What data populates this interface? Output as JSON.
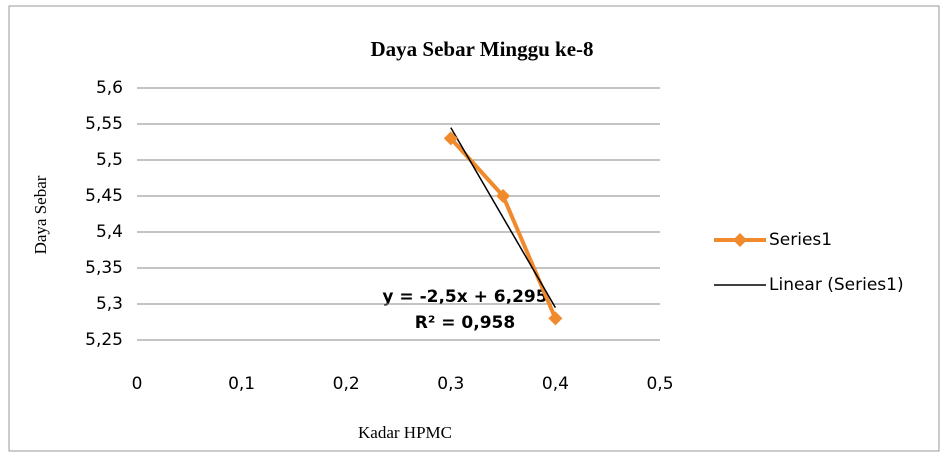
{
  "chart_data": {
    "type": "scatter-line",
    "title": "Daya Sebar Minggu ke-8",
    "x_label": "Kadar HPMC",
    "y_label": "Daya Sebar",
    "series": [
      {
        "name": "Series1",
        "color": "#f08a2c",
        "marker": "diamond",
        "x": [
          0.3,
          0.35,
          0.4
        ],
        "values": [
          5.53,
          5.45,
          5.28
        ]
      },
      {
        "name": "Linear (Series1)",
        "color": "#000000",
        "x": [
          0.3,
          0.4
        ],
        "values": [
          5.545,
          5.295
        ]
      }
    ],
    "annotations": [
      "y = -2,5x + 6,295",
      "R² = 0,958"
    ],
    "xlim": [
      0,
      0.5
    ],
    "xticks": [
      0,
      {
        "value": 0.1,
        "label": "0,1"
      },
      {
        "value": 0.2,
        "label": "0,2"
      },
      {
        "value": 0.3,
        "label": "0,3"
      },
      {
        "value": 0.4,
        "label": "0,4"
      },
      {
        "value": 0.5,
        "label": "0,5"
      }
    ],
    "ylim": [
      5.25,
      5.6
    ],
    "yticks": [
      {
        "value": 5.25,
        "label": "5,25"
      },
      {
        "value": 5.3,
        "label": "5,3"
      },
      {
        "value": 5.35,
        "label": "5,35"
      },
      {
        "value": 5.4,
        "label": "5,4"
      },
      {
        "value": 5.45,
        "label": "5,45"
      },
      {
        "value": 5.5,
        "label": "5,5"
      },
      {
        "value": 5.55,
        "label": "5,55"
      },
      {
        "value": 5.6,
        "label": "5,6"
      }
    ],
    "grid": true,
    "legend": "right"
  }
}
